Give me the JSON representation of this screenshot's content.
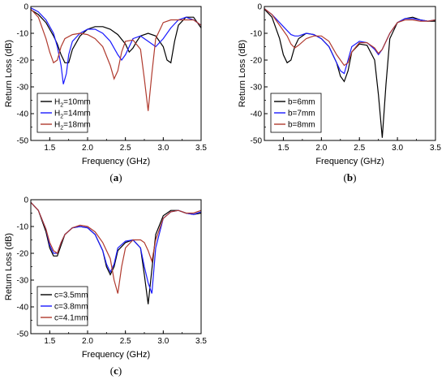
{
  "chart_data": [
    {
      "panel": "(a)",
      "panel_letter": "a",
      "type": "line",
      "xlabel": "Frequency (GHz)",
      "ylabel": "Return Loss (dB)",
      "xlim": [
        1.25,
        3.5
      ],
      "ylim": [
        -50,
        0
      ],
      "xticks": [
        1.5,
        2.0,
        2.5,
        3.0,
        3.5
      ],
      "yticks": [
        0,
        -10,
        -20,
        -30,
        -40,
        -50
      ],
      "xtick_labels": [
        "1.5",
        "2.0",
        "2.5",
        "3.0",
        "3.5"
      ],
      "ytick_labels": [
        "0",
        "-10",
        "-20",
        "-30",
        "-40",
        "-50"
      ],
      "legend_position": "lower-left",
      "grid": false,
      "series": [
        {
          "name": "H2=10mm",
          "legend_main": "H",
          "legend_sub": "2",
          "legend_rest": "=10mm",
          "color": "#000000",
          "x": [
            1.25,
            1.35,
            1.45,
            1.55,
            1.6,
            1.65,
            1.7,
            1.75,
            1.8,
            1.9,
            2.0,
            2.1,
            2.2,
            2.3,
            2.4,
            2.5,
            2.55,
            2.6,
            2.65,
            2.7,
            2.8,
            2.9,
            3.0,
            3.05,
            3.1,
            3.15,
            3.2,
            3.3,
            3.4,
            3.5
          ],
          "y": [
            -1.2,
            -3,
            -6,
            -11,
            -14,
            -18,
            -21,
            -21,
            -16,
            -11,
            -8.5,
            -7.5,
            -7.5,
            -8.5,
            -10.5,
            -14,
            -17,
            -15.5,
            -13,
            -11,
            -10,
            -11,
            -15,
            -20,
            -21,
            -13,
            -7,
            -4,
            -4,
            -8
          ]
        },
        {
          "name": "H2=14mm",
          "legend_main": "H",
          "legend_sub": "2",
          "legend_rest": "=14mm",
          "color": "#1a1aff",
          "x": [
            1.25,
            1.35,
            1.45,
            1.55,
            1.6,
            1.65,
            1.68,
            1.72,
            1.75,
            1.8,
            1.9,
            2.0,
            2.1,
            2.2,
            2.3,
            2.4,
            2.45,
            2.5,
            2.6,
            2.7,
            2.75,
            2.8,
            2.9,
            3.0,
            3.1,
            3.2,
            3.3,
            3.4,
            3.5
          ],
          "y": [
            -0.5,
            -2,
            -5,
            -10,
            -15,
            -22,
            -29,
            -25,
            -18,
            -13,
            -10,
            -8.5,
            -8.5,
            -10,
            -13,
            -18,
            -20,
            -18,
            -12,
            -11,
            -12,
            -13,
            -15,
            -12,
            -8,
            -5,
            -4,
            -5,
            -7
          ]
        },
        {
          "name": "H2=18mm",
          "legend_main": "H",
          "legend_sub": "2",
          "legend_rest": "=18mm",
          "color": "#b03a2e",
          "x": [
            1.25,
            1.35,
            1.45,
            1.5,
            1.55,
            1.6,
            1.65,
            1.7,
            1.8,
            1.9,
            2.0,
            2.1,
            2.2,
            2.3,
            2.35,
            2.4,
            2.45,
            2.5,
            2.6,
            2.7,
            2.75,
            2.8,
            2.85,
            2.9,
            3.0,
            3.1,
            3.2,
            3.3,
            3.4,
            3.5
          ],
          "y": [
            -1,
            -4,
            -12,
            -17,
            -21,
            -20,
            -15,
            -12,
            -10.5,
            -10,
            -10.5,
            -12,
            -15,
            -22,
            -27,
            -24,
            -17,
            -13,
            -12.5,
            -16,
            -27,
            -39,
            -25,
            -12,
            -6,
            -5,
            -5,
            -5,
            -5,
            -7
          ]
        }
      ]
    },
    {
      "panel": "(b)",
      "panel_letter": "b",
      "type": "line",
      "xlabel": "Frequency (GHz)",
      "ylabel": "Return Loss (dB)",
      "xlim": [
        1.25,
        3.5
      ],
      "ylim": [
        -50,
        0
      ],
      "xticks": [
        1.5,
        2.0,
        2.5,
        3.0,
        3.5
      ],
      "yticks": [
        0,
        -10,
        -20,
        -30,
        -40,
        -50
      ],
      "xtick_labels": [
        "1.5",
        "2.0",
        "2.5",
        "3.0",
        "3.5"
      ],
      "ytick_labels": [
        "0",
        "-10",
        "-20",
        "-30",
        "-40",
        "-50"
      ],
      "legend_position": "lower-left",
      "grid": false,
      "series": [
        {
          "name": "b=6mm",
          "legend_main": "b=6mm",
          "legend_sub": "",
          "legend_rest": "",
          "color": "#000000",
          "x": [
            1.25,
            1.35,
            1.45,
            1.5,
            1.55,
            1.6,
            1.65,
            1.7,
            1.8,
            1.9,
            2.0,
            2.1,
            2.2,
            2.25,
            2.3,
            2.35,
            2.4,
            2.5,
            2.6,
            2.7,
            2.75,
            2.8,
            2.85,
            2.9,
            3.0,
            3.1,
            3.2,
            3.3,
            3.4,
            3.5
          ],
          "y": [
            -1,
            -4,
            -12,
            -18,
            -21,
            -20,
            -15,
            -12,
            -10,
            -10.5,
            -12,
            -15,
            -21,
            -26,
            -28,
            -24,
            -17,
            -14,
            -14.5,
            -20,
            -33,
            -49,
            -29,
            -12,
            -6,
            -4.5,
            -4,
            -5,
            -5.5,
            -5.5
          ]
        },
        {
          "name": "b=7mm",
          "legend_main": "b=7mm",
          "legend_sub": "",
          "legend_rest": "",
          "color": "#1a1aff",
          "x": [
            1.25,
            1.35,
            1.45,
            1.55,
            1.6,
            1.65,
            1.7,
            1.8,
            1.9,
            2.0,
            2.1,
            2.2,
            2.25,
            2.3,
            2.35,
            2.4,
            2.5,
            2.6,
            2.7,
            2.75,
            2.8,
            2.9,
            3.0,
            3.1,
            3.2,
            3.3,
            3.4,
            3.5
          ],
          "y": [
            -0.8,
            -3,
            -6,
            -9,
            -10.5,
            -11,
            -11,
            -10,
            -10.5,
            -12,
            -15,
            -21,
            -24,
            -25,
            -20,
            -15,
            -13,
            -13.5,
            -16,
            -18,
            -16,
            -10,
            -6,
            -4.5,
            -4.5,
            -5,
            -5.5,
            -5
          ]
        },
        {
          "name": "b=8mm",
          "legend_main": "b=8mm",
          "legend_sub": "",
          "legend_rest": "",
          "color": "#b03a2e",
          "x": [
            1.25,
            1.35,
            1.45,
            1.55,
            1.6,
            1.65,
            1.7,
            1.8,
            1.9,
            2.0,
            2.1,
            2.2,
            2.3,
            2.35,
            2.4,
            2.5,
            2.6,
            2.7,
            2.75,
            2.8,
            2.9,
            3.0,
            3.1,
            3.2,
            3.3,
            3.4,
            3.5
          ],
          "y": [
            -0.8,
            -3,
            -7,
            -11,
            -14,
            -15.5,
            -14.5,
            -12,
            -11,
            -11,
            -13,
            -18,
            -22,
            -21,
            -17,
            -13.5,
            -13.5,
            -15.5,
            -17.5,
            -16,
            -10,
            -6,
            -5,
            -5,
            -5.5,
            -5.5,
            -5
          ]
        }
      ]
    },
    {
      "panel": "(c)",
      "panel_letter": "c",
      "type": "line",
      "xlabel": "Frequency (GHz)",
      "ylabel": "Return Loss (dB)",
      "xlim": [
        1.25,
        3.5
      ],
      "ylim": [
        -50,
        0
      ],
      "xticks": [
        1.5,
        2.0,
        2.5,
        3.0,
        3.5
      ],
      "yticks": [
        0,
        -10,
        -20,
        -30,
        -40,
        -50
      ],
      "xtick_labels": [
        "1.5",
        "2.0",
        "2.5",
        "3.0",
        "3.5"
      ],
      "ytick_labels": [
        "0",
        "-10",
        "-20",
        "-30",
        "-40",
        "-50"
      ],
      "legend_position": "lower-left",
      "grid": false,
      "series": [
        {
          "name": "c=3.5mm",
          "legend_main": "c=3.5mm",
          "legend_sub": "",
          "legend_rest": "",
          "color": "#000000",
          "x": [
            1.25,
            1.35,
            1.45,
            1.5,
            1.55,
            1.6,
            1.65,
            1.7,
            1.8,
            1.9,
            2.0,
            2.1,
            2.2,
            2.25,
            2.3,
            2.35,
            2.4,
            2.5,
            2.6,
            2.7,
            2.75,
            2.8,
            2.85,
            2.9,
            3.0,
            3.1,
            3.2,
            3.3,
            3.4,
            3.5
          ],
          "y": [
            -1,
            -4,
            -12,
            -18,
            -21,
            -21,
            -17,
            -13,
            -10.5,
            -10,
            -10.5,
            -13,
            -19,
            -25,
            -28,
            -25,
            -19,
            -16,
            -15,
            -18,
            -28,
            -39,
            -26,
            -13,
            -6,
            -4,
            -4,
            -5,
            -5.5,
            -5
          ]
        },
        {
          "name": "c=3.8mm",
          "legend_main": "c=3.8mm",
          "legend_sub": "",
          "legend_rest": "",
          "color": "#1a1aff",
          "x": [
            1.25,
            1.35,
            1.45,
            1.5,
            1.55,
            1.6,
            1.65,
            1.7,
            1.8,
            1.9,
            2.0,
            2.1,
            2.2,
            2.25,
            2.3,
            2.35,
            2.4,
            2.5,
            2.6,
            2.7,
            2.75,
            2.8,
            2.85,
            2.9,
            3.0,
            3.1,
            3.2,
            3.3,
            3.4,
            3.5
          ],
          "y": [
            -1,
            -4,
            -11,
            -17,
            -20,
            -20,
            -16,
            -13,
            -10.5,
            -10,
            -10.5,
            -13,
            -19,
            -24,
            -27,
            -24,
            -18,
            -15.5,
            -15,
            -18,
            -25,
            -31,
            -35,
            -18,
            -7,
            -4.5,
            -4,
            -5,
            -5.5,
            -4.5
          ]
        },
        {
          "name": "c=4.1mm",
          "legend_main": "c=4.1mm",
          "legend_sub": "",
          "legend_rest": "",
          "color": "#b03a2e",
          "x": [
            1.25,
            1.35,
            1.45,
            1.5,
            1.55,
            1.6,
            1.65,
            1.7,
            1.8,
            1.9,
            2.0,
            2.1,
            2.2,
            2.3,
            2.35,
            2.4,
            2.45,
            2.5,
            2.6,
            2.7,
            2.75,
            2.8,
            2.85,
            2.9,
            3.0,
            3.1,
            3.2,
            3.3,
            3.4,
            3.5
          ],
          "y": [
            -1,
            -4,
            -11,
            -16,
            -19,
            -20,
            -16,
            -13,
            -10.5,
            -9.5,
            -10,
            -12,
            -16,
            -22,
            -30,
            -35,
            -25,
            -18,
            -15,
            -15,
            -16,
            -19,
            -23,
            -15,
            -7,
            -4.5,
            -4,
            -5,
            -5,
            -4
          ]
        }
      ]
    }
  ]
}
